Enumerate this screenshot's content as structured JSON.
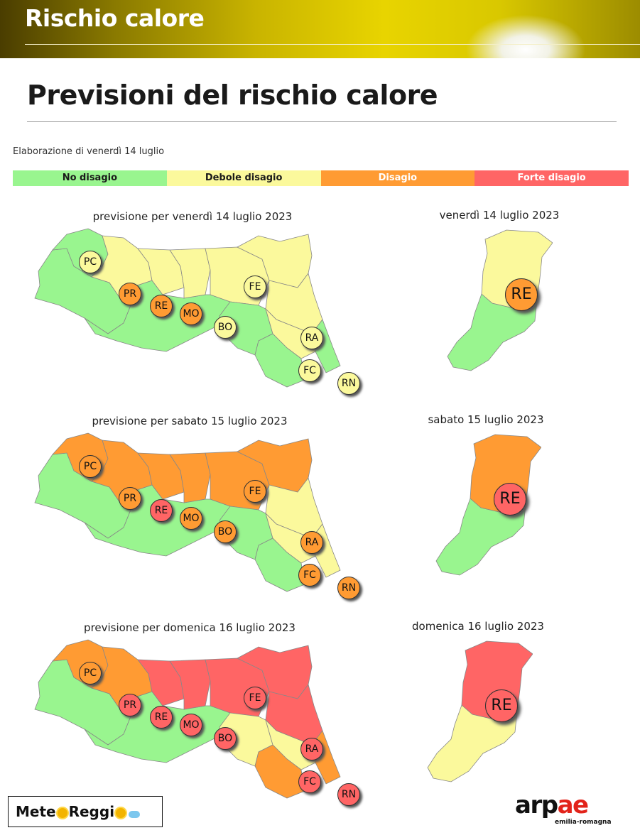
{
  "header": {
    "title": "Rischio calore"
  },
  "page_title": "Previsioni del rischio calore",
  "elaboration": "Elaborazione di venerdì 14 luglio",
  "legend": [
    {
      "label": "No disagio",
      "color": "#99f58f",
      "text_color": "#1a1a1a"
    },
    {
      "label": "Debole disagio",
      "color": "#fbf99c",
      "text_color": "#1a1a1a"
    },
    {
      "label": "Disagio",
      "color": "#ff9b33",
      "text_color": "#ffffff"
    },
    {
      "label": "Forte disagio",
      "color": "#ff6565",
      "text_color": "#ffffff"
    }
  ],
  "colors": {
    "none": "#99f58f",
    "weak": "#fbf99c",
    "moderate": "#ff9b33",
    "strong": "#ff6565"
  },
  "days": [
    {
      "region_title": "previsione per venerdì 14 luglio 2023",
      "province_title": "venerdì 14 luglio 2023",
      "areas": {
        "pc": "none",
        "west_plain": "none",
        "pr": "weak",
        "re_north": "weak",
        "mo_north": "weak",
        "bo_north": "weak",
        "fe": "weak",
        "ra": "weak",
        "fc_plain": "weak",
        "fc_hill": "none",
        "rn": "none",
        "apennine": "none",
        "bo_hill": "none"
      },
      "badges": {
        "PC": "weak",
        "PR": "moderate",
        "RE": "moderate",
        "MO": "moderate",
        "BO": "weak",
        "FE": "weak",
        "RA": "weak",
        "FC": "weak",
        "RN": "weak"
      },
      "province": {
        "north": "weak",
        "south": "none",
        "badge": "moderate",
        "label": "RE"
      }
    },
    {
      "region_title": "previsione per sabato 15 luglio 2023",
      "province_title": "sabato 15 luglio 2023",
      "areas": {
        "pc": "moderate",
        "west_plain": "none",
        "pr": "moderate",
        "re_north": "moderate",
        "mo_north": "moderate",
        "bo_north": "moderate",
        "fe": "moderate",
        "ra": "weak",
        "fc_plain": "weak",
        "fc_hill": "none",
        "rn": "weak",
        "apennine": "none",
        "bo_hill": "none"
      },
      "badges": {
        "PC": "moderate",
        "PR": "moderate",
        "RE": "strong",
        "MO": "moderate",
        "BO": "moderate",
        "FE": "moderate",
        "RA": "moderate",
        "FC": "moderate",
        "RN": "moderate"
      },
      "province": {
        "north": "moderate",
        "south": "none",
        "badge": "strong",
        "label": "RE"
      }
    },
    {
      "region_title": "previsione per domenica 16 luglio 2023",
      "province_title": "domenica 16 luglio 2023",
      "areas": {
        "pc": "moderate",
        "west_plain": "none",
        "pr": "moderate",
        "re_north": "strong",
        "mo_north": "strong",
        "bo_north": "strong",
        "fe": "strong",
        "ra": "strong",
        "fc_plain": "weak",
        "fc_hill": "moderate",
        "rn": "moderate",
        "apennine": "none",
        "bo_hill": "weak"
      },
      "badges": {
        "PC": "moderate",
        "PR": "strong",
        "RE": "strong",
        "MO": "strong",
        "BO": "strong",
        "FE": "strong",
        "RA": "strong",
        "FC": "strong",
        "RN": "strong"
      },
      "province": {
        "north": "strong",
        "south": "weak",
        "badge": "strong",
        "label": "RE"
      }
    }
  ],
  "footer": {
    "meteo_part1": "Mete",
    "meteo_part2": "Reggi",
    "arpae_text": "arpae",
    "arpae_sub": "emilia-romagna"
  }
}
